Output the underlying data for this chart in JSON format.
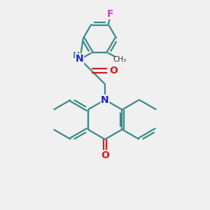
{
  "bg_color": "#f0f0f0",
  "bond_color": "#3a8a8a",
  "N_color": "#2020cc",
  "O_color": "#cc2020",
  "F_color": "#cc44cc",
  "line_width": 1.6,
  "dbo": 0.12,
  "figsize": [
    3.0,
    3.0
  ],
  "dpi": 100,
  "xlim": [
    0,
    10
  ],
  "ylim": [
    0,
    10
  ]
}
